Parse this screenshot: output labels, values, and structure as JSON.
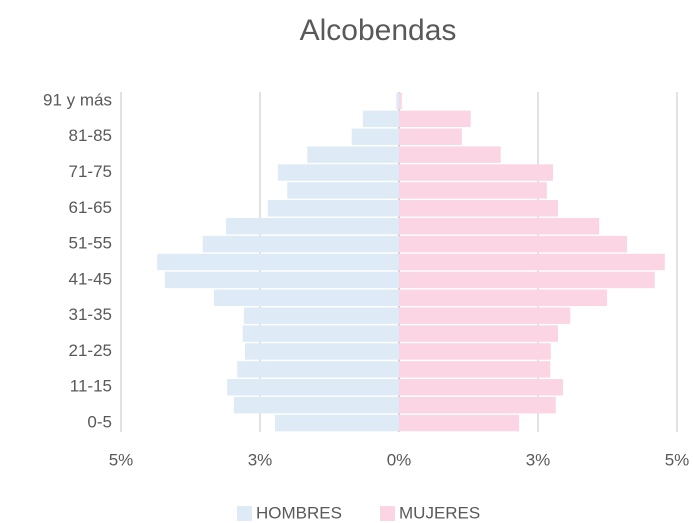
{
  "chart_data": {
    "type": "pyramid",
    "title": "Alcobendas",
    "categories": [
      "0-5",
      null,
      "11-15",
      null,
      "21-25",
      null,
      "31-35",
      null,
      "41-45",
      null,
      "51-55",
      null,
      "61-65",
      null,
      "71-75",
      null,
      "81-85",
      null,
      "91 y más"
    ],
    "series": [
      {
        "name": "HOMBRES",
        "color": "#deebf7",
        "values": [
          -2.23,
          -2.97,
          -3.09,
          -2.91,
          -2.77,
          -2.81,
          -2.79,
          -3.33,
          -4.21,
          -4.35,
          -3.53,
          -3.11,
          -2.36,
          -2.01,
          -2.18,
          -1.65,
          -0.85,
          -0.65,
          -0.05
        ]
      },
      {
        "name": "MUJERES",
        "color": "#fbd5e4",
        "values": [
          2.16,
          2.82,
          2.95,
          2.72,
          2.73,
          2.86,
          3.08,
          3.74,
          4.6,
          4.78,
          4.1,
          3.6,
          2.86,
          2.66,
          2.77,
          1.83,
          1.13,
          1.29,
          0.05
        ]
      }
    ],
    "xlim": [
      -5,
      5
    ],
    "xticks": [
      {
        "value": -5,
        "label": "5%"
      },
      {
        "value": -2.5,
        "label": "3%"
      },
      {
        "value": 0,
        "label": "0%"
      },
      {
        "value": 2.5,
        "label": "3%"
      },
      {
        "value": 5,
        "label": "5%"
      }
    ],
    "grid": true,
    "legend": "bottom"
  }
}
